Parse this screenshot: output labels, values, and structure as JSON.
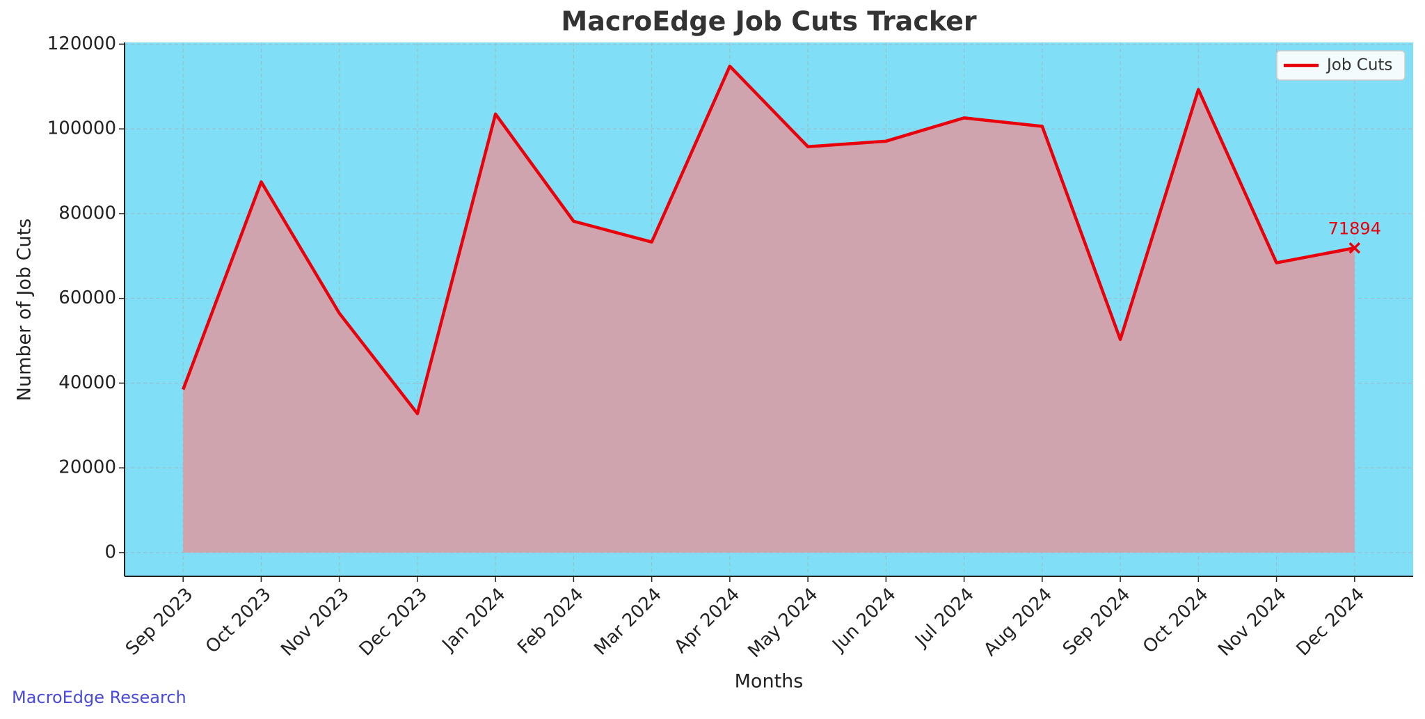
{
  "chart_data": {
    "type": "area-line",
    "title": "MacroEdge Job Cuts Tracker",
    "x_label": "Months",
    "y_label": "Number of Job Cuts",
    "watermark": "MacroEdge Research",
    "categories": [
      "Sep 2023",
      "Oct 2023",
      "Nov 2023",
      "Dec 2023",
      "Jan 2024",
      "Feb 2024",
      "Mar 2024",
      "Apr 2024",
      "May 2024",
      "Jun 2024",
      "Jul 2024",
      "Aug 2024",
      "Sep 2024",
      "Oct 2024",
      "Nov 2024",
      "Dec 2024"
    ],
    "series": [
      {
        "name": "Job Cuts",
        "color": "#e8000b",
        "fill": "#d0a4ae",
        "values": [
          38500,
          87500,
          56500,
          32800,
          103500,
          78200,
          73300,
          114800,
          95800,
          97100,
          102600,
          100600,
          50300,
          109300,
          68400,
          71894
        ]
      }
    ],
    "annotate_last": true,
    "ylim": [
      -5600,
      120400
    ],
    "yticks": [
      0,
      20000,
      40000,
      60000,
      80000,
      100000,
      120000
    ],
    "grid": true,
    "background": "#80dff7",
    "legend": "upper right"
  }
}
